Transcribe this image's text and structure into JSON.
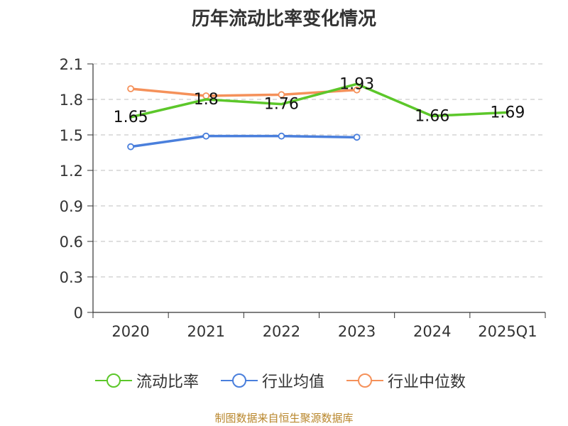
{
  "chart_data": {
    "type": "line",
    "title": "历年流动比率变化情况",
    "categories": [
      "2020",
      "2021",
      "2022",
      "2023",
      "2024",
      "2025Q1"
    ],
    "ylim": [
      0,
      2.1
    ],
    "yticks": [
      "0",
      "0.3",
      "0.6",
      "0.9",
      "1.2",
      "1.5",
      "1.8",
      "2.1"
    ],
    "ytick_values": [
      0,
      0.3,
      0.6,
      0.9,
      1.2,
      1.5,
      1.8,
      2.1
    ],
    "grid": true,
    "legend_position": "bottom",
    "series": [
      {
        "name": "流动比率",
        "color": "#5cc72a",
        "values": [
          1.65,
          1.8,
          1.76,
          1.93,
          1.66,
          1.69
        ],
        "labels": [
          "1.65",
          "1.8",
          "1.76",
          "1.93",
          "1.66",
          "1.69"
        ],
        "markers": false
      },
      {
        "name": "行业均值",
        "color": "#4a7fdc",
        "values": [
          1.4,
          1.49,
          1.49,
          1.48,
          null,
          null
        ],
        "markers": true
      },
      {
        "name": "行业中位数",
        "color": "#f5915a",
        "values": [
          1.89,
          1.83,
          1.84,
          1.88,
          null,
          null
        ],
        "markers": true
      }
    ]
  },
  "footer": "制图数据来自恒生聚源数据库"
}
